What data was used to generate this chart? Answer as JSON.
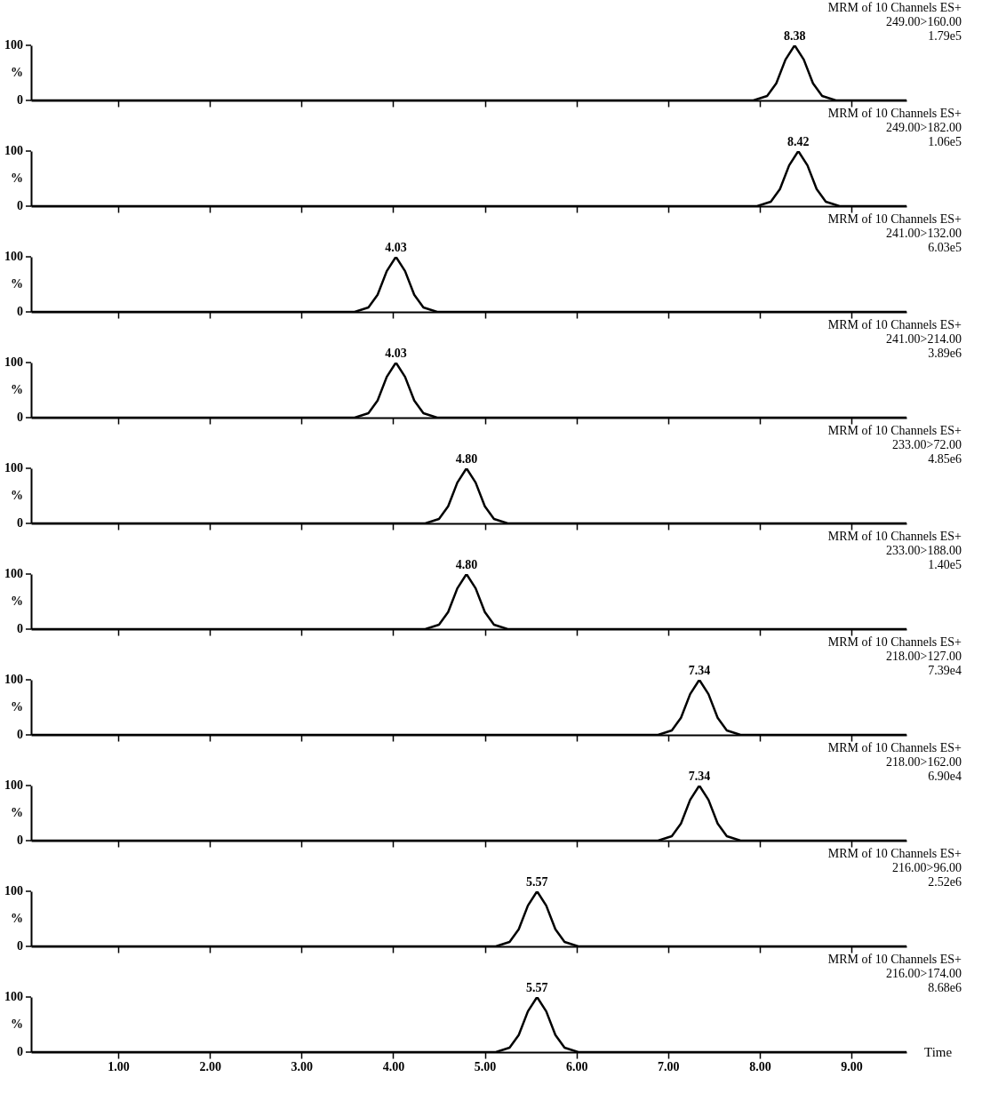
{
  "chart_data": [
    {
      "type": "line",
      "ylabel": "%",
      "annotations": [
        "MRM of 10 Channels ES+",
        "249.00>160.00",
        "1.79e5",
        {
          "text": "8.38",
          "x": 8.38,
          "y": 100
        }
      ],
      "x": [
        0.05,
        7.93,
        8.08,
        8.18,
        8.28,
        8.38,
        8.48,
        8.58,
        8.68,
        8.83,
        9.6
      ],
      "series": [
        {
          "color": "#000000",
          "values": [
            0,
            0,
            8,
            31,
            74,
            100,
            74,
            31,
            8,
            0,
            0
          ]
        }
      ],
      "xlim": [
        0.05,
        9.6
      ],
      "ylim": [
        0,
        100
      ],
      "xticks": [
        {
          "value": 1,
          "label": null
        },
        {
          "value": 2,
          "label": null
        },
        {
          "value": 3,
          "label": null
        },
        {
          "value": 4,
          "label": null
        },
        {
          "value": 5,
          "label": null
        },
        {
          "value": 6,
          "label": null
        },
        {
          "value": 7,
          "label": null
        },
        {
          "value": 8,
          "label": null
        },
        {
          "value": 9,
          "label": null
        }
      ],
      "yticks": [
        0,
        100
      ],
      "tick_labels": "y",
      "grid": false
    },
    {
      "type": "line",
      "ylabel": "%",
      "annotations": [
        "MRM of 10 Channels ES+",
        "249.00>182.00",
        "1.06e5",
        {
          "text": "8.42",
          "x": 8.42,
          "y": 100
        }
      ],
      "x": [
        0.05,
        7.97,
        8.12,
        8.22,
        8.32,
        8.42,
        8.52,
        8.62,
        8.72,
        8.87,
        9.6
      ],
      "series": [
        {
          "color": "#000000",
          "values": [
            0,
            0,
            8,
            31,
            74,
            100,
            74,
            31,
            8,
            0,
            0
          ]
        }
      ],
      "xlim": [
        0.05,
        9.6
      ],
      "ylim": [
        0,
        100
      ],
      "xticks": [
        {
          "value": 1,
          "label": null
        },
        {
          "value": 2,
          "label": null
        },
        {
          "value": 3,
          "label": null
        },
        {
          "value": 4,
          "label": null
        },
        {
          "value": 5,
          "label": null
        },
        {
          "value": 6,
          "label": null
        },
        {
          "value": 7,
          "label": null
        },
        {
          "value": 8,
          "label": null
        },
        {
          "value": 9,
          "label": null
        }
      ],
      "yticks": [
        0,
        100
      ],
      "tick_labels": "y",
      "grid": false
    },
    {
      "type": "line",
      "ylabel": "%",
      "annotations": [
        "MRM of 10 Channels ES+",
        "241.00>132.00",
        "6.03e5",
        {
          "text": "4.03",
          "x": 4.03,
          "y": 100
        }
      ],
      "x": [
        0.05,
        3.58,
        3.73,
        3.83,
        3.93,
        4.03,
        4.13,
        4.23,
        4.33,
        4.48,
        9.6
      ],
      "series": [
        {
          "color": "#000000",
          "values": [
            0,
            0,
            8,
            31,
            74,
            100,
            74,
            31,
            8,
            0,
            0
          ]
        }
      ],
      "xlim": [
        0.05,
        9.6
      ],
      "ylim": [
        0,
        100
      ],
      "xticks": [
        {
          "value": 1,
          "label": null
        },
        {
          "value": 2,
          "label": null
        },
        {
          "value": 3,
          "label": null
        },
        {
          "value": 4,
          "label": null
        },
        {
          "value": 5,
          "label": null
        },
        {
          "value": 6,
          "label": null
        },
        {
          "value": 7,
          "label": null
        },
        {
          "value": 8,
          "label": null
        },
        {
          "value": 9,
          "label": null
        }
      ],
      "yticks": [
        0,
        100
      ],
      "tick_labels": "y",
      "grid": false
    },
    {
      "type": "line",
      "ylabel": "%",
      "annotations": [
        "MRM of 10 Channels ES+",
        "241.00>214.00",
        "3.89e6",
        {
          "text": "4.03",
          "x": 4.03,
          "y": 100
        }
      ],
      "x": [
        0.05,
        3.58,
        3.73,
        3.83,
        3.93,
        4.03,
        4.13,
        4.23,
        4.33,
        4.48,
        9.6
      ],
      "series": [
        {
          "color": "#000000",
          "values": [
            0,
            0,
            8,
            31,
            74,
            100,
            74,
            31,
            8,
            0,
            0
          ]
        }
      ],
      "xlim": [
        0.05,
        9.6
      ],
      "ylim": [
        0,
        100
      ],
      "xticks": [
        {
          "value": 1,
          "label": null
        },
        {
          "value": 2,
          "label": null
        },
        {
          "value": 3,
          "label": null
        },
        {
          "value": 4,
          "label": null
        },
        {
          "value": 5,
          "label": null
        },
        {
          "value": 6,
          "label": null
        },
        {
          "value": 7,
          "label": null
        },
        {
          "value": 8,
          "label": null
        },
        {
          "value": 9,
          "label": null
        }
      ],
      "yticks": [
        0,
        100
      ],
      "tick_labels": "y",
      "grid": false
    },
    {
      "type": "line",
      "ylabel": "%",
      "annotations": [
        "MRM of 10 Channels ES+",
        "233.00>72.00",
        "4.85e6",
        {
          "text": "4.80",
          "x": 4.8,
          "y": 100
        }
      ],
      "x": [
        0.05,
        4.35,
        4.5,
        4.6,
        4.7,
        4.8,
        4.9,
        5.0,
        5.1,
        5.25,
        9.6
      ],
      "series": [
        {
          "color": "#000000",
          "values": [
            0,
            0,
            8,
            31,
            74,
            100,
            74,
            31,
            8,
            0,
            0
          ]
        }
      ],
      "xlim": [
        0.05,
        9.6
      ],
      "ylim": [
        0,
        100
      ],
      "xticks": [
        {
          "value": 1,
          "label": null
        },
        {
          "value": 2,
          "label": null
        },
        {
          "value": 3,
          "label": null
        },
        {
          "value": 4,
          "label": null
        },
        {
          "value": 5,
          "label": null
        },
        {
          "value": 6,
          "label": null
        },
        {
          "value": 7,
          "label": null
        },
        {
          "value": 8,
          "label": null
        },
        {
          "value": 9,
          "label": null
        }
      ],
      "yticks": [
        0,
        100
      ],
      "tick_labels": "y",
      "grid": false
    },
    {
      "type": "line",
      "ylabel": "%",
      "annotations": [
        "MRM of 10 Channels ES+",
        "233.00>188.00",
        "1.40e5",
        {
          "text": "4.80",
          "x": 4.8,
          "y": 100
        }
      ],
      "x": [
        0.05,
        4.35,
        4.5,
        4.6,
        4.7,
        4.8,
        4.9,
        5.0,
        5.1,
        5.25,
        9.6
      ],
      "series": [
        {
          "color": "#000000",
          "values": [
            0,
            0,
            8,
            31,
            74,
            100,
            74,
            31,
            8,
            0,
            0
          ]
        }
      ],
      "xlim": [
        0.05,
        9.6
      ],
      "ylim": [
        0,
        100
      ],
      "xticks": [
        {
          "value": 1,
          "label": null
        },
        {
          "value": 2,
          "label": null
        },
        {
          "value": 3,
          "label": null
        },
        {
          "value": 4,
          "label": null
        },
        {
          "value": 5,
          "label": null
        },
        {
          "value": 6,
          "label": null
        },
        {
          "value": 7,
          "label": null
        },
        {
          "value": 8,
          "label": null
        },
        {
          "value": 9,
          "label": null
        }
      ],
      "yticks": [
        0,
        100
      ],
      "tick_labels": "y",
      "grid": false
    },
    {
      "type": "line",
      "ylabel": "%",
      "annotations": [
        "MRM of 10 Channels ES+",
        "218.00>127.00",
        "7.39e4",
        {
          "text": "7.34",
          "x": 7.34,
          "y": 100
        }
      ],
      "x": [
        0.05,
        6.89,
        7.04,
        7.14,
        7.24,
        7.34,
        7.44,
        7.54,
        7.64,
        7.79,
        9.6
      ],
      "series": [
        {
          "color": "#000000",
          "values": [
            0,
            0,
            8,
            31,
            74,
            100,
            74,
            31,
            8,
            0,
            0
          ]
        }
      ],
      "xlim": [
        0.05,
        9.6
      ],
      "ylim": [
        0,
        100
      ],
      "xticks": [
        {
          "value": 1,
          "label": null
        },
        {
          "value": 2,
          "label": null
        },
        {
          "value": 3,
          "label": null
        },
        {
          "value": 4,
          "label": null
        },
        {
          "value": 5,
          "label": null
        },
        {
          "value": 6,
          "label": null
        },
        {
          "value": 7,
          "label": null
        },
        {
          "value": 8,
          "label": null
        },
        {
          "value": 9,
          "label": null
        }
      ],
      "yticks": [
        0,
        100
      ],
      "tick_labels": "y",
      "grid": false
    },
    {
      "type": "line",
      "ylabel": "%",
      "annotations": [
        "MRM of 10 Channels ES+",
        "218.00>162.00",
        "6.90e4",
        {
          "text": "7.34",
          "x": 7.34,
          "y": 100
        }
      ],
      "x": [
        0.05,
        6.89,
        7.04,
        7.14,
        7.24,
        7.34,
        7.44,
        7.54,
        7.64,
        7.79,
        9.6
      ],
      "series": [
        {
          "color": "#000000",
          "values": [
            0,
            0,
            8,
            31,
            74,
            100,
            74,
            31,
            8,
            0,
            0
          ]
        }
      ],
      "xlim": [
        0.05,
        9.6
      ],
      "ylim": [
        0,
        100
      ],
      "xticks": [
        {
          "value": 1,
          "label": null
        },
        {
          "value": 2,
          "label": null
        },
        {
          "value": 3,
          "label": null
        },
        {
          "value": 4,
          "label": null
        },
        {
          "value": 5,
          "label": null
        },
        {
          "value": 6,
          "label": null
        },
        {
          "value": 7,
          "label": null
        },
        {
          "value": 8,
          "label": null
        },
        {
          "value": 9,
          "label": null
        }
      ],
      "yticks": [
        0,
        100
      ],
      "tick_labels": "y",
      "grid": false
    },
    {
      "type": "line",
      "ylabel": "%",
      "annotations": [
        "MRM of 10 Channels ES+",
        "216.00>96.00",
        "2.52e6",
        {
          "text": "5.57",
          "x": 5.57,
          "y": 100
        }
      ],
      "x": [
        0.05,
        5.12,
        5.27,
        5.37,
        5.47,
        5.57,
        5.67,
        5.77,
        5.87,
        6.02,
        9.6
      ],
      "series": [
        {
          "color": "#000000",
          "values": [
            0,
            0,
            8,
            31,
            74,
            100,
            74,
            31,
            8,
            0,
            0
          ]
        }
      ],
      "xlim": [
        0.05,
        9.6
      ],
      "ylim": [
        0,
        100
      ],
      "xticks": [
        {
          "value": 1,
          "label": null
        },
        {
          "value": 2,
          "label": null
        },
        {
          "value": 3,
          "label": null
        },
        {
          "value": 4,
          "label": null
        },
        {
          "value": 5,
          "label": null
        },
        {
          "value": 6,
          "label": null
        },
        {
          "value": 7,
          "label": null
        },
        {
          "value": 8,
          "label": null
        },
        {
          "value": 9,
          "label": null
        }
      ],
      "yticks": [
        0,
        100
      ],
      "tick_labels": "y",
      "grid": false
    },
    {
      "type": "line",
      "xlabel": "Time",
      "ylabel": "%",
      "annotations": [
        "MRM of 10 Channels ES+",
        "216.00>174.00",
        "8.68e6",
        {
          "text": "5.57",
          "x": 5.57,
          "y": 100
        }
      ],
      "x": [
        0.05,
        5.12,
        5.27,
        5.37,
        5.47,
        5.57,
        5.67,
        5.77,
        5.87,
        6.02,
        9.6
      ],
      "series": [
        {
          "color": "#000000",
          "values": [
            0,
            0,
            8,
            31,
            74,
            100,
            74,
            31,
            8,
            0,
            0
          ]
        }
      ],
      "xlim": [
        0.05,
        9.6
      ],
      "ylim": [
        0,
        100
      ],
      "xticks": [
        {
          "value": 1,
          "label": "1.00"
        },
        {
          "value": 2,
          "label": "2.00"
        },
        {
          "value": 3,
          "label": "3.00"
        },
        {
          "value": 4,
          "label": "4.00"
        },
        {
          "value": 5,
          "label": "5.00"
        },
        {
          "value": 6,
          "label": "6.00"
        },
        {
          "value": 7,
          "label": "7.00"
        },
        {
          "value": 8,
          "label": "8.00"
        },
        {
          "value": 9,
          "label": "9.00"
        }
      ],
      "yticks": [
        0,
        100
      ],
      "grid": false
    }
  ]
}
